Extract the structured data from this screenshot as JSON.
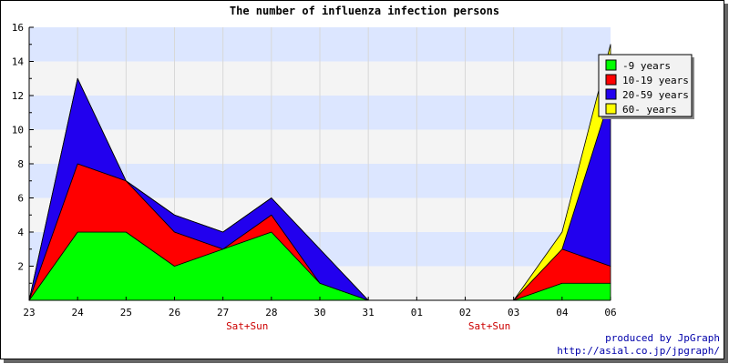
{
  "chart_data": {
    "type": "area",
    "stacked": true,
    "title": "The number of influenza infection persons",
    "x_labels": [
      "23",
      "24",
      "25",
      "26",
      "27",
      "28",
      "30",
      "31",
      "01",
      "02",
      "03",
      "04",
      "06"
    ],
    "weekend_labels": [
      {
        "after_index": 4,
        "label": "Sat+Sun"
      },
      {
        "after_index": 9,
        "label": "Sat+Sun"
      }
    ],
    "ylim": [
      0,
      16
    ],
    "y_ticks": [
      2,
      4,
      6,
      8,
      10,
      12,
      14,
      16
    ],
    "grid": true,
    "legend_position": "top-right",
    "series": [
      {
        "name": "-9 years",
        "color": "#00ff00",
        "values": [
          0,
          4,
          4,
          2,
          3,
          4,
          1,
          0,
          null,
          null,
          0,
          1,
          1
        ]
      },
      {
        "name": "10-19 years",
        "color": "#ff0000",
        "values": [
          0,
          4,
          3,
          2,
          0,
          1,
          0,
          0,
          null,
          null,
          0,
          2,
          1
        ]
      },
      {
        "name": "20-59 years",
        "color": "#2200ee",
        "values": [
          0,
          5,
          0,
          1,
          1,
          1,
          2,
          0,
          null,
          null,
          0,
          0,
          10
        ]
      },
      {
        "name": "60- years",
        "color": "#ffff00",
        "values": [
          0,
          0,
          0,
          0,
          0,
          0,
          0,
          0,
          null,
          null,
          0,
          1,
          3
        ]
      }
    ]
  },
  "credits": {
    "line1": "produced by JpGraph",
    "line2": "http://asial.co.jp/jpgraph/"
  }
}
